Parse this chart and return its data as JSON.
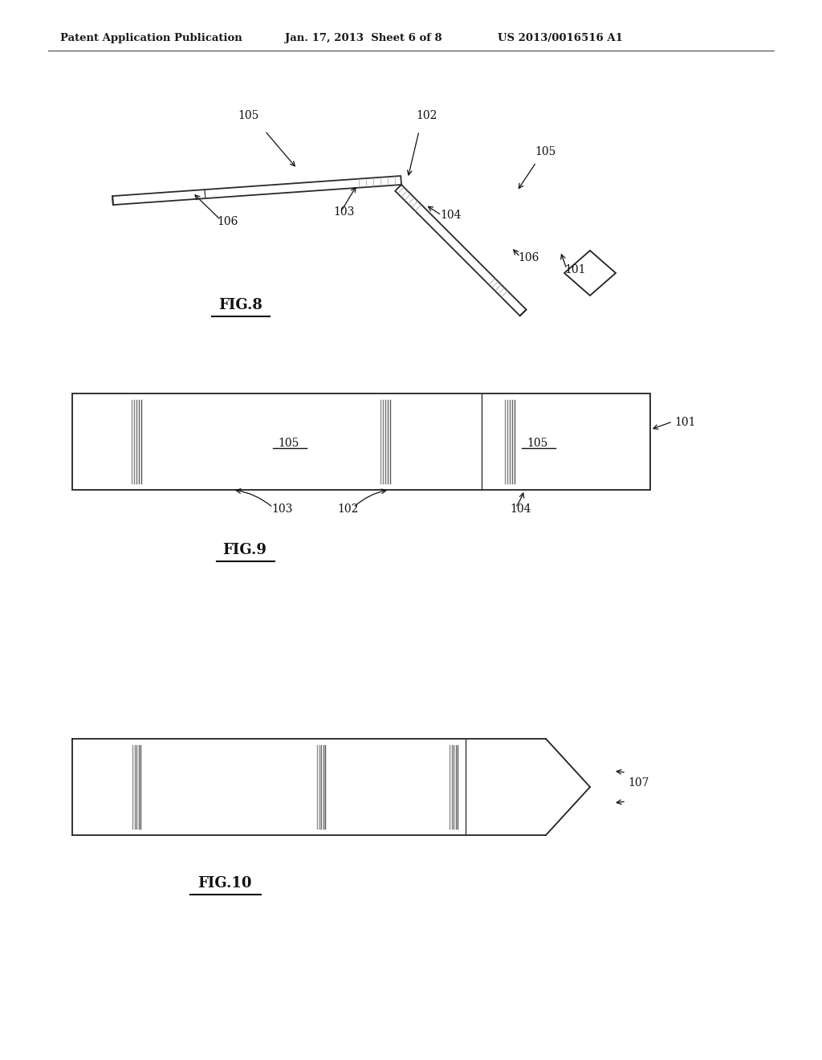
{
  "background_color": "#ffffff",
  "header_left": "Patent Application Publication",
  "header_center": "Jan. 17, 2013  Sheet 6 of 8",
  "header_right": "US 2013/0016516 A1",
  "fig8_title": "FIG.8",
  "fig9_title": "FIG.9",
  "fig10_title": "FIG.10"
}
